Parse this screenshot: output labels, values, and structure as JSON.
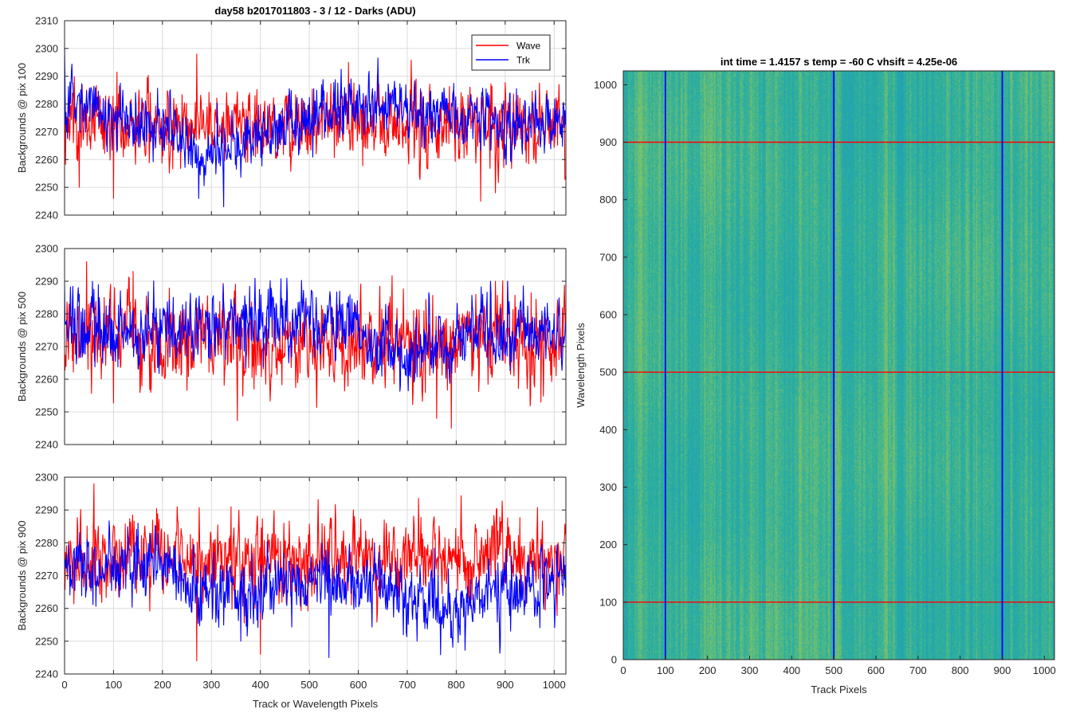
{
  "chart_data": [
    {
      "type": "line",
      "title": "day58 b2017011803 - 3 / 12 - Darks (ADU)",
      "ylabel": "Backgrounds @ pix 100",
      "xlabel": "",
      "xlim": [
        0,
        1024
      ],
      "ylim": [
        2240,
        2310
      ],
      "xticks": [
        0,
        100,
        200,
        300,
        400,
        500,
        600,
        700,
        800,
        900,
        1000
      ],
      "yticks": [
        2240,
        2250,
        2260,
        2270,
        2280,
        2290,
        2300,
        2310
      ],
      "grid": true,
      "legend": {
        "placement": "top-right",
        "entries": [
          "Wave",
          "Trk"
        ]
      },
      "series": [
        {
          "name": "Wave",
          "color": "#ff0000",
          "mean": 2273,
          "spread": 6.5,
          "spikes": [
            [
              270,
              2298
            ],
            [
              580,
              2295
            ],
            [
              30,
              2250
            ],
            [
              100,
              2246
            ],
            [
              850,
              2245
            ],
            [
              880,
              2248
            ]
          ]
        },
        {
          "name": "Trk",
          "color": "#0000ff",
          "mean": 2276,
          "spread": 5,
          "spikes": [
            [
              0,
              2300
            ],
            [
              325,
              2243
            ],
            [
              700,
              2282
            ]
          ],
          "trend": [
            [
              0,
              2281
            ],
            [
              150,
              2274
            ],
            [
              300,
              2262
            ],
            [
              400,
              2270
            ],
            [
              600,
              2280
            ],
            [
              750,
              2276
            ],
            [
              900,
              2273
            ],
            [
              1024,
              2276
            ]
          ]
        }
      ]
    },
    {
      "type": "line",
      "title": "",
      "ylabel": "Backgrounds @ pix 500",
      "xlabel": "",
      "xlim": [
        0,
        1024
      ],
      "ylim": [
        2240,
        2300
      ],
      "xticks": [
        0,
        100,
        200,
        300,
        400,
        500,
        600,
        700,
        800,
        900,
        1000
      ],
      "yticks": [
        2240,
        2250,
        2260,
        2270,
        2280,
        2290,
        2300
      ],
      "grid": true,
      "series": [
        {
          "name": "Wave",
          "color": "#ff0000",
          "mean": 2271,
          "spread": 6.5,
          "spikes": [
            [
              45,
              2296
            ],
            [
              140,
              2293
            ],
            [
              870,
              2289
            ],
            [
              880,
              2290
            ],
            [
              905,
              2290
            ],
            [
              790,
              2245
            ],
            [
              760,
              2248
            ]
          ]
        },
        {
          "name": "Trk",
          "color": "#0000ff",
          "mean": 2275,
          "spread": 5,
          "spikes": [
            [
              0,
              2289
            ],
            [
              870,
              2290
            ],
            [
              905,
              2290
            ]
          ],
          "trend": [
            [
              0,
              2276
            ],
            [
              200,
              2274
            ],
            [
              400,
              2277
            ],
            [
              550,
              2278
            ],
            [
              700,
              2267
            ],
            [
              850,
              2275
            ],
            [
              1024,
              2274
            ]
          ]
        }
      ]
    },
    {
      "type": "line",
      "title": "",
      "ylabel": "Backgrounds @ pix 900",
      "xlabel": "Track or Wavelength Pixels",
      "xlim": [
        0,
        1024
      ],
      "ylim": [
        2240,
        2300
      ],
      "xticks": [
        0,
        100,
        200,
        300,
        400,
        500,
        600,
        700,
        800,
        900,
        1000
      ],
      "yticks": [
        2240,
        2250,
        2260,
        2270,
        2280,
        2290,
        2300
      ],
      "grid": true,
      "series": [
        {
          "name": "Wave",
          "color": "#ff0000",
          "mean": 2275,
          "spread": 6,
          "spikes": [
            [
              60,
              2298
            ],
            [
              230,
              2291
            ],
            [
              270,
              2244
            ],
            [
              340,
              2291
            ],
            [
              590,
              2290
            ],
            [
              400,
              2246
            ]
          ]
        },
        {
          "name": "Trk",
          "color": "#0000ff",
          "mean": 2271,
          "spread": 5,
          "spikes": [
            [
              150,
              2286
            ],
            [
              360,
              2250
            ],
            [
              540,
              2245
            ],
            [
              720,
              2250
            ]
          ],
          "trend": [
            [
              0,
              2273
            ],
            [
              100,
              2272
            ],
            [
              200,
              2273
            ],
            [
              300,
              2264
            ],
            [
              500,
              2268
            ],
            [
              650,
              2269
            ],
            [
              780,
              2260
            ],
            [
              1024,
              2270
            ]
          ]
        }
      ]
    },
    {
      "type": "heatmap",
      "title": "int time = 1.4157 s    temp = -60 C    vhsift = 4.25e-06",
      "xlabel": "Track Pixels",
      "ylabel": "Wavelength Pixels",
      "xlim": [
        0,
        1024
      ],
      "ylim": [
        0,
        1024
      ],
      "xticks": [
        0,
        100,
        200,
        300,
        400,
        500,
        600,
        700,
        800,
        900,
        1000
      ],
      "yticks": [
        0,
        100,
        200,
        300,
        400,
        500,
        600,
        700,
        800,
        900,
        1000
      ],
      "colormap": [
        "#1fa0b6",
        "#2eb09c",
        "#82c466"
      ],
      "overlay_vertical_lines": {
        "color": "#0000ff",
        "x": [
          100,
          500,
          900
        ]
      },
      "overlay_horizontal_lines": {
        "color": "#ff0000",
        "y": [
          100,
          500,
          900
        ]
      }
    }
  ]
}
